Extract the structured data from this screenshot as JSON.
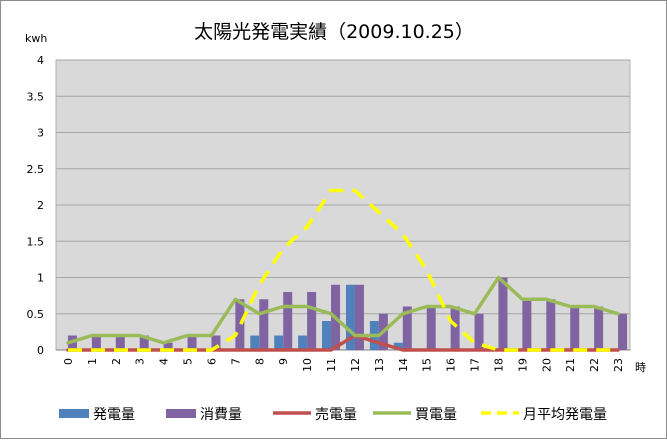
{
  "chart_data": {
    "type": "bar",
    "title": "太陽光発電実績（2009.10.25）",
    "ylabel": "kwh",
    "xlabel": "時",
    "ylim": [
      0,
      4
    ],
    "yticks": [
      "0",
      "0.5",
      "1",
      "1.5",
      "2",
      "2.5",
      "3",
      "3.5",
      "4"
    ],
    "categories": [
      "0",
      "1",
      "2",
      "3",
      "4",
      "5",
      "6",
      "7",
      "8",
      "9",
      "10",
      "11",
      "12",
      "13",
      "14",
      "15",
      "16",
      "17",
      "18",
      "19",
      "20",
      "21",
      "22",
      "23"
    ],
    "grid": true,
    "legend_position": "bottom",
    "series": [
      {
        "name": "発電量",
        "kind": "bar",
        "color": "#4f81bd",
        "values": [
          0,
          0,
          0,
          0,
          0,
          0,
          0,
          0,
          0.2,
          0.2,
          0.2,
          0.4,
          0.9,
          0.4,
          0.1,
          0,
          0,
          0,
          0,
          0,
          0,
          0,
          0,
          0
        ]
      },
      {
        "name": "消費量",
        "kind": "bar",
        "color": "#8064a2",
        "values": [
          0.2,
          0.2,
          0.2,
          0.2,
          0.1,
          0.2,
          0.2,
          0.7,
          0.7,
          0.8,
          0.8,
          0.9,
          0.9,
          0.5,
          0.6,
          0.6,
          0.6,
          0.5,
          1.0,
          0.7,
          0.7,
          0.6,
          0.6,
          0.5
        ]
      },
      {
        "name": "売電量",
        "kind": "line",
        "color": "#c0504d",
        "values": [
          0,
          0,
          0,
          0,
          0,
          0,
          0,
          0,
          0,
          0,
          0,
          0,
          0.2,
          0.1,
          0,
          0,
          0,
          0,
          0,
          0,
          0,
          0,
          0,
          0
        ]
      },
      {
        "name": "買電量",
        "kind": "line",
        "color": "#9bbb59",
        "values": [
          0.1,
          0.2,
          0.2,
          0.2,
          0.1,
          0.2,
          0.2,
          0.7,
          0.5,
          0.6,
          0.6,
          0.5,
          0.2,
          0.2,
          0.5,
          0.6,
          0.6,
          0.5,
          1.0,
          0.7,
          0.7,
          0.6,
          0.6,
          0.5
        ]
      },
      {
        "name": "月平均発電量",
        "kind": "dashed-line",
        "color": "#ffff00",
        "values": [
          0,
          0,
          0,
          0,
          0,
          0,
          0,
          0.2,
          0.9,
          1.4,
          1.7,
          2.2,
          2.2,
          1.9,
          1.6,
          1.1,
          0.4,
          0.1,
          0,
          0,
          0,
          0,
          0,
          0
        ]
      }
    ]
  }
}
